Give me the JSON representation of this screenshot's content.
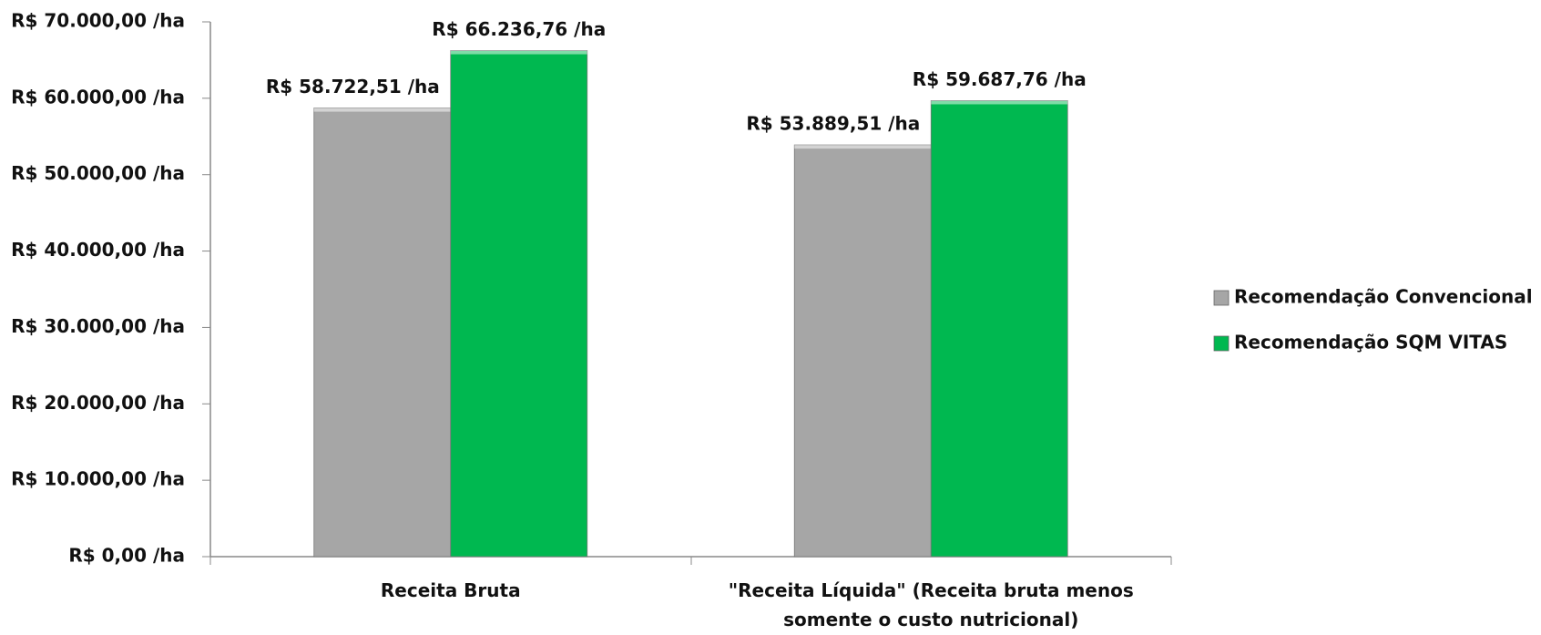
{
  "chart_data": {
    "type": "bar",
    "categories": [
      "Receita Bruta",
      "\"Receita Líquida\" (Receita bruta menos somente o custo nutricional)"
    ],
    "series": [
      {
        "name": "Recomendação Convencional",
        "color": "#a6a6a6",
        "values": [
          58722.51,
          53889.51
        ],
        "value_labels": [
          "R$ 58.722,51 /ha",
          "R$ 53.889,51 /ha"
        ]
      },
      {
        "name": "Recomendação SQM VITAS",
        "color": "#00b850",
        "values": [
          66236.76,
          59687.76
        ],
        "value_labels": [
          "R$ 66.236,76 /ha",
          "R$ 59.687,76 /ha"
        ]
      }
    ],
    "ylim": [
      0,
      70000
    ],
    "yticks": [
      {
        "value": 0,
        "label": "R$ 0,00 /ha"
      },
      {
        "value": 10000,
        "label": "R$ 10.000,00 /ha"
      },
      {
        "value": 20000,
        "label": "R$ 20.000,00 /ha"
      },
      {
        "value": 30000,
        "label": "R$ 30.000,00 /ha"
      },
      {
        "value": 40000,
        "label": "R$ 40.000,00 /ha"
      },
      {
        "value": 50000,
        "label": "R$ 50.000,00 /ha"
      },
      {
        "value": 60000,
        "label": "R$ 60.000,00 /ha"
      },
      {
        "value": 70000,
        "label": "R$ 70.000,00 /ha"
      }
    ],
    "grid": false,
    "legend": "right"
  }
}
